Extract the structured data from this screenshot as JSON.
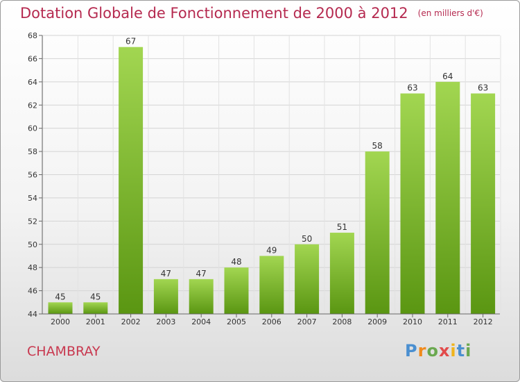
{
  "title": "Dotation Globale de Fonctionnement de 2000 à 2012",
  "unit": "(en milliers d'€)",
  "place": "CHAMBRAY",
  "logo_text": "Proxiti",
  "colors": {
    "title": "#b5294f",
    "bar_light": "#9fd24e",
    "bar_dark": "#5e9a14",
    "place": "#c8384f"
  },
  "chart_data": {
    "type": "bar",
    "title": "Dotation Globale de Fonctionnement de 2000 à 2012",
    "xlabel": "",
    "ylabel": "",
    "categories": [
      "2000",
      "2001",
      "2002",
      "2003",
      "2004",
      "2005",
      "2006",
      "2007",
      "2008",
      "2009",
      "2010",
      "2011",
      "2012"
    ],
    "values": [
      45,
      45,
      67,
      47,
      47,
      48,
      49,
      50,
      51,
      58,
      63,
      64,
      63
    ],
    "ylim": [
      44,
      68
    ],
    "yticks": [
      44,
      46,
      48,
      50,
      52,
      54,
      56,
      58,
      60,
      62,
      64,
      66,
      68
    ],
    "grid": true,
    "legend": "none"
  }
}
